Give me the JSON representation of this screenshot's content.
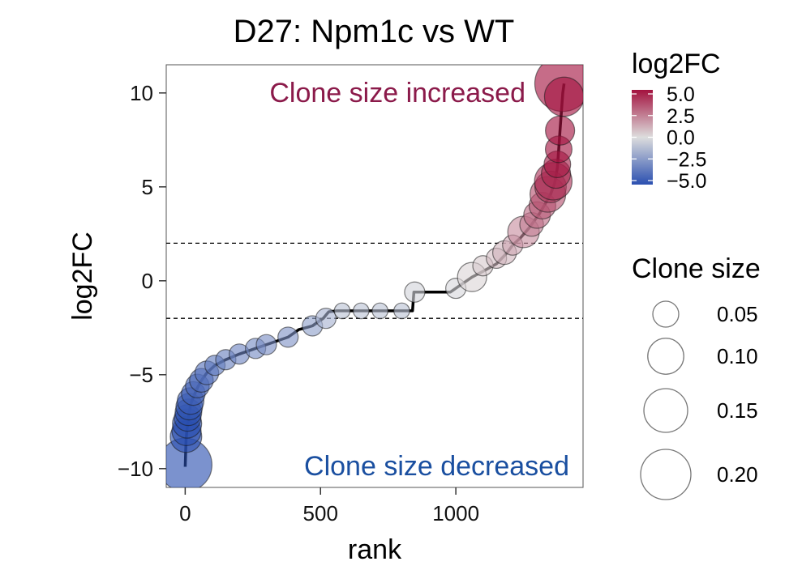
{
  "chart_data": {
    "type": "scatter",
    "title": "D27: Npm1c vs WT",
    "xlabel": "rank",
    "ylabel": "log2FC",
    "xlim": [
      -70,
      1470
    ],
    "ylim": [
      -11.0,
      11.5
    ],
    "x_ticks": [
      0,
      500,
      1000
    ],
    "y_ticks": [
      -10,
      -5,
      0,
      5,
      10
    ],
    "threshold_lines": [
      2,
      -2
    ],
    "annotations": {
      "up": "Clone size increased",
      "down": "Clone size decreased",
      "up_color": "#8b1a4a",
      "down_color": "#1a4fa0"
    },
    "grid": false,
    "color_scale": {
      "title": "log2FC",
      "min": -5,
      "max": 5,
      "low_color": "#2a4fb0",
      "mid_color": "#dddddd",
      "high_color": "#a3123f",
      "ticks": [
        "5.0",
        "2.5",
        "0.0",
        "−2.5",
        "−5.0"
      ]
    },
    "size_legend": {
      "title": "Clone size",
      "items": [
        {
          "label": "0.05",
          "value": 0.05
        },
        {
          "label": "0.10",
          "value": 0.1
        },
        {
          "label": "0.15",
          "value": 0.15
        },
        {
          "label": "0.20",
          "value": 0.2
        }
      ]
    },
    "line_series": [
      [
        0,
        -9.9
      ],
      [
        3,
        -8.5
      ],
      [
        6,
        -8.0
      ],
      [
        10,
        -7.5
      ],
      [
        15,
        -7.0
      ],
      [
        20,
        -6.6
      ],
      [
        30,
        -6.2
      ],
      [
        45,
        -5.7
      ],
      [
        60,
        -5.3
      ],
      [
        80,
        -4.9
      ],
      [
        110,
        -4.5
      ],
      [
        150,
        -4.2
      ],
      [
        200,
        -3.9
      ],
      [
        260,
        -3.6
      ],
      [
        320,
        -3.3
      ],
      [
        380,
        -3.0
      ],
      [
        420,
        -2.6
      ],
      [
        470,
        -2.4
      ],
      [
        510,
        -2.0
      ],
      [
        530,
        -1.65
      ],
      [
        560,
        -1.6
      ],
      [
        840,
        -1.6
      ],
      [
        845,
        -0.6
      ],
      [
        980,
        -0.6
      ],
      [
        1000,
        -0.4
      ],
      [
        1060,
        0.2
      ],
      [
        1100,
        0.5
      ],
      [
        1150,
        0.9
      ],
      [
        1190,
        1.5
      ],
      [
        1210,
        1.9
      ],
      [
        1240,
        2.3
      ],
      [
        1270,
        2.8
      ],
      [
        1290,
        3.2
      ],
      [
        1310,
        3.6
      ],
      [
        1330,
        4.1
      ],
      [
        1350,
        4.6
      ],
      [
        1365,
        5.2
      ],
      [
        1375,
        6.0
      ],
      [
        1380,
        7.0
      ],
      [
        1385,
        8.0
      ],
      [
        1390,
        9.0
      ],
      [
        1395,
        10.0
      ],
      [
        1400,
        10.5
      ]
    ],
    "points": [
      {
        "x": 0,
        "y": -9.8,
        "size": 0.2,
        "fc": -5.0
      },
      {
        "x": 3,
        "y": -8.3,
        "size": 0.06,
        "fc": -5.0
      },
      {
        "x": 5,
        "y": -8.0,
        "size": 0.05,
        "fc": -5.0
      },
      {
        "x": 7,
        "y": -7.6,
        "size": 0.05,
        "fc": -5.0
      },
      {
        "x": 9,
        "y": -7.3,
        "size": 0.04,
        "fc": -5.0
      },
      {
        "x": 12,
        "y": -7.0,
        "size": 0.04,
        "fc": -5.0
      },
      {
        "x": 15,
        "y": -6.7,
        "size": 0.04,
        "fc": -4.8
      },
      {
        "x": 20,
        "y": -6.4,
        "size": 0.04,
        "fc": -4.6
      },
      {
        "x": 30,
        "y": -6.0,
        "size": 0.03,
        "fc": -4.4
      },
      {
        "x": 45,
        "y": -5.6,
        "size": 0.03,
        "fc": -4.2
      },
      {
        "x": 60,
        "y": -5.3,
        "size": 0.03,
        "fc": -4.0
      },
      {
        "x": 80,
        "y": -4.9,
        "size": 0.03,
        "fc": -3.8
      },
      {
        "x": 110,
        "y": -4.5,
        "size": 0.02,
        "fc": -3.5
      },
      {
        "x": 150,
        "y": -4.2,
        "size": 0.02,
        "fc": -3.3
      },
      {
        "x": 200,
        "y": -3.9,
        "size": 0.02,
        "fc": -3.1
      },
      {
        "x": 260,
        "y": -3.6,
        "size": 0.02,
        "fc": -2.9
      },
      {
        "x": 300,
        "y": -3.4,
        "size": 0.02,
        "fc": -2.8
      },
      {
        "x": 380,
        "y": -3.0,
        "size": 0.02,
        "fc": -2.6
      },
      {
        "x": 470,
        "y": -2.4,
        "size": 0.02,
        "fc": -2.2
      },
      {
        "x": 520,
        "y": -2.0,
        "size": 0.02,
        "fc": -1.5
      },
      {
        "x": 580,
        "y": -1.6,
        "size": 0.01,
        "fc": -1.0
      },
      {
        "x": 650,
        "y": -1.6,
        "size": 0.01,
        "fc": -1.0
      },
      {
        "x": 720,
        "y": -1.6,
        "size": 0.01,
        "fc": -1.0
      },
      {
        "x": 800,
        "y": -1.6,
        "size": 0.01,
        "fc": -1.0
      },
      {
        "x": 848,
        "y": -0.6,
        "size": 0.02,
        "fc": -0.3
      },
      {
        "x": 1000,
        "y": -0.4,
        "size": 0.02,
        "fc": -0.2
      },
      {
        "x": 1060,
        "y": 0.2,
        "size": 0.05,
        "fc": 0.2
      },
      {
        "x": 1100,
        "y": 0.8,
        "size": 0.02,
        "fc": 0.5
      },
      {
        "x": 1150,
        "y": 1.2,
        "size": 0.02,
        "fc": 0.8
      },
      {
        "x": 1180,
        "y": 1.5,
        "size": 0.03,
        "fc": 1.0
      },
      {
        "x": 1210,
        "y": 1.9,
        "size": 0.02,
        "fc": 1.3
      },
      {
        "x": 1250,
        "y": 2.6,
        "size": 0.06,
        "fc": 2.0
      },
      {
        "x": 1280,
        "y": 3.0,
        "size": 0.03,
        "fc": 2.3
      },
      {
        "x": 1300,
        "y": 3.5,
        "size": 0.04,
        "fc": 2.8
      },
      {
        "x": 1320,
        "y": 4.0,
        "size": 0.04,
        "fc": 3.2
      },
      {
        "x": 1340,
        "y": 4.6,
        "size": 0.08,
        "fc": 3.5
      },
      {
        "x": 1350,
        "y": 5.0,
        "size": 0.06,
        "fc": 4.0
      },
      {
        "x": 1360,
        "y": 5.3,
        "size": 0.09,
        "fc": 4.2
      },
      {
        "x": 1370,
        "y": 5.7,
        "size": 0.05,
        "fc": 4.5
      },
      {
        "x": 1375,
        "y": 6.2,
        "size": 0.04,
        "fc": 4.8
      },
      {
        "x": 1380,
        "y": 7.0,
        "size": 0.04,
        "fc": 5.0
      },
      {
        "x": 1385,
        "y": 8.0,
        "size": 0.05,
        "fc": 5.0
      },
      {
        "x": 1395,
        "y": 10.5,
        "size": 0.22,
        "fc": 5.0
      },
      {
        "x": 1400,
        "y": 9.8,
        "size": 0.1,
        "fc": 5.0
      }
    ]
  }
}
